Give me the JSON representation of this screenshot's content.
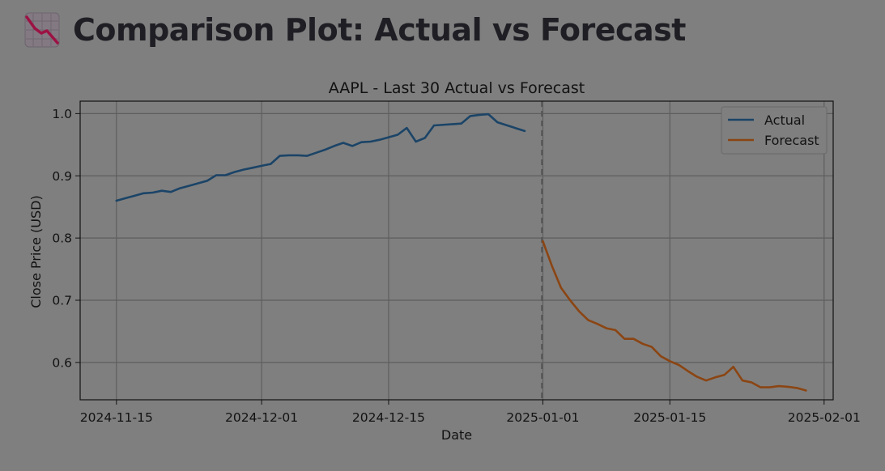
{
  "page": {
    "title": "Comparison Plot: Actual vs Forecast",
    "icon": "chart-decreasing-icon"
  },
  "colors": {
    "actual": "#1b4467",
    "forecast": "#8b4513",
    "background": "#7f7f7f",
    "grid": "#5e5e5e",
    "text": "#121212",
    "divider": "#555555"
  },
  "chart_data": {
    "type": "line",
    "title": "AAPL - Last 30 Actual vs Forecast",
    "xlabel": "Date",
    "ylabel": "Close Price (USD)",
    "xlim": [
      "2024-11-11",
      "2025-02-02"
    ],
    "ylim": [
      0.54,
      1.02
    ],
    "x_ticks": [
      "2024-11-15",
      "2024-12-01",
      "2024-12-15",
      "2025-01-01",
      "2025-01-15",
      "2025-02-01"
    ],
    "y_ticks": [
      0.6,
      0.7,
      0.8,
      0.9,
      1.0
    ],
    "y_tick_labels": [
      "0.6",
      "0.7",
      "0.8",
      "0.9",
      "1.0"
    ],
    "grid": true,
    "legend": "top-right",
    "forecast_start_marker": "2024-12-31",
    "series": [
      {
        "name": "Actual",
        "color": "#1b4467",
        "x": [
          "2024-11-15",
          "2024-11-16",
          "2024-11-17",
          "2024-11-18",
          "2024-11-19",
          "2024-11-20",
          "2024-11-21",
          "2024-11-22",
          "2024-11-23",
          "2024-11-24",
          "2024-11-25",
          "2024-11-26",
          "2024-11-27",
          "2024-11-28",
          "2024-11-29",
          "2024-11-30",
          "2024-12-01",
          "2024-12-02",
          "2024-12-03",
          "2024-12-04",
          "2024-12-05",
          "2024-12-06",
          "2024-12-07",
          "2024-12-08",
          "2024-12-09",
          "2024-12-10",
          "2024-12-11",
          "2024-12-12",
          "2024-12-13",
          "2024-12-14",
          "2024-12-15",
          "2024-12-16",
          "2024-12-17",
          "2024-12-18",
          "2024-12-19",
          "2024-12-20",
          "2024-12-23",
          "2024-12-24",
          "2024-12-25",
          "2024-12-26",
          "2024-12-27",
          "2024-12-30"
        ],
        "values": [
          0.86,
          0.864,
          0.868,
          0.872,
          0.873,
          0.876,
          0.874,
          0.88,
          0.884,
          0.888,
          0.892,
          0.901,
          0.901,
          0.906,
          0.91,
          0.913,
          0.916,
          0.919,
          0.932,
          0.933,
          0.933,
          0.932,
          0.937,
          0.942,
          0.948,
          0.953,
          0.948,
          0.954,
          0.955,
          0.958,
          0.962,
          0.966,
          0.977,
          0.955,
          0.961,
          0.981,
          0.984,
          0.996,
          0.998,
          0.999,
          0.986,
          0.972
        ]
      },
      {
        "name": "Forecast",
        "color": "#8b4513",
        "x": [
          "2025-01-01",
          "2025-01-02",
          "2025-01-03",
          "2025-01-04",
          "2025-01-05",
          "2025-01-06",
          "2025-01-07",
          "2025-01-08",
          "2025-01-09",
          "2025-01-10",
          "2025-01-11",
          "2025-01-12",
          "2025-01-13",
          "2025-01-14",
          "2025-01-15",
          "2025-01-16",
          "2025-01-17",
          "2025-01-18",
          "2025-01-19",
          "2025-01-20",
          "2025-01-21",
          "2025-01-22",
          "2025-01-23",
          "2025-01-24",
          "2025-01-25",
          "2025-01-26",
          "2025-01-27",
          "2025-01-28",
          "2025-01-29",
          "2025-01-30"
        ],
        "values": [
          0.795,
          0.755,
          0.72,
          0.7,
          0.682,
          0.668,
          0.662,
          0.655,
          0.652,
          0.638,
          0.638,
          0.63,
          0.625,
          0.61,
          0.602,
          0.596,
          0.586,
          0.577,
          0.571,
          0.576,
          0.58,
          0.593,
          0.571,
          0.568,
          0.56,
          0.56,
          0.562,
          0.561,
          0.559,
          0.555
        ]
      }
    ]
  }
}
